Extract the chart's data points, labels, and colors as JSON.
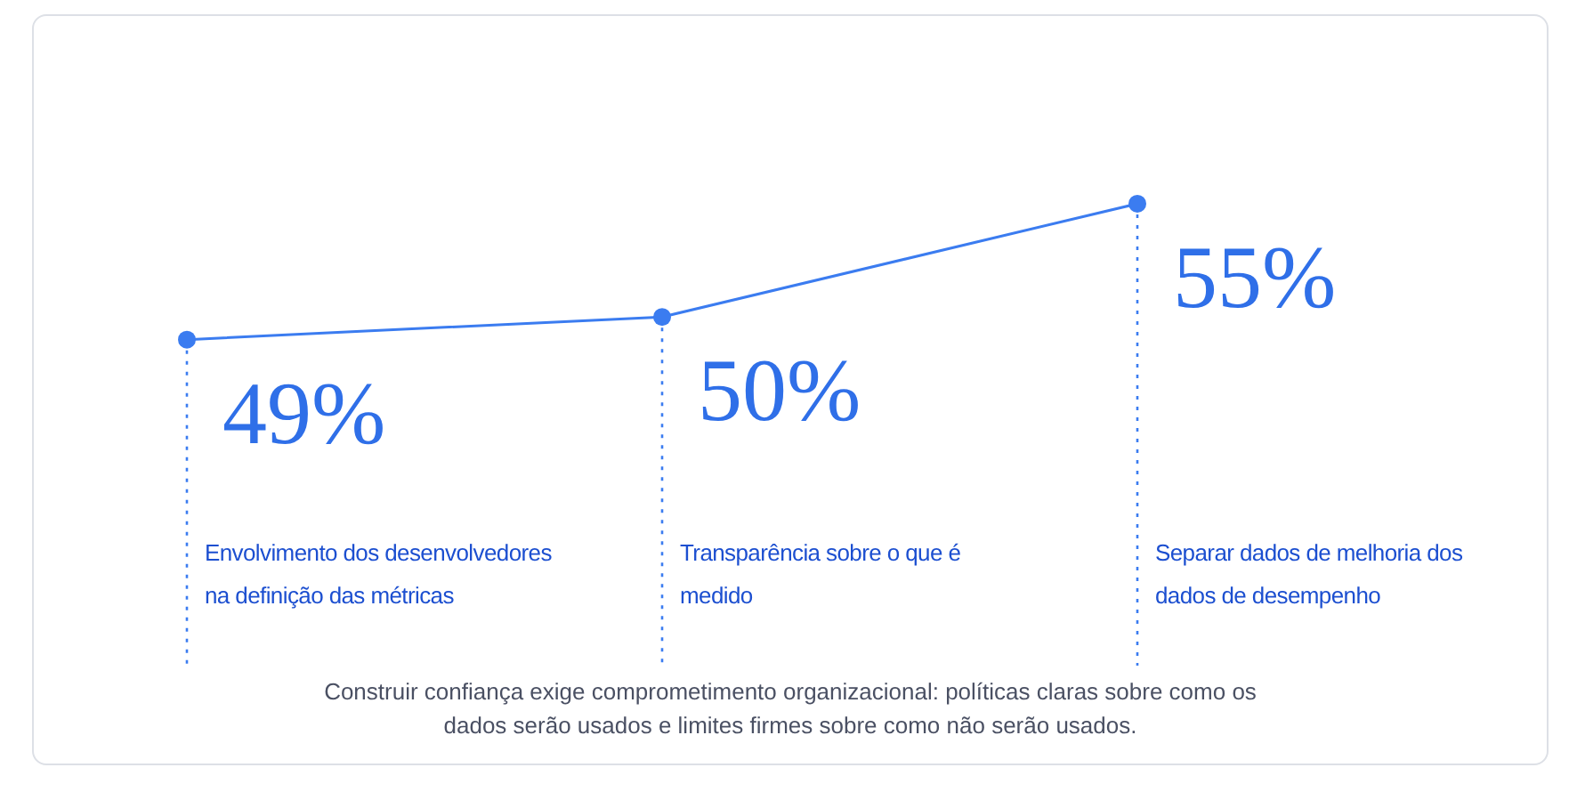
{
  "chart_data": {
    "type": "other",
    "categories": [
      "Envolvimento dos desenvolvedores na definição das métricas",
      "Transparência sobre o que é medido",
      "Separar dados de melhoria dos dados de desempenho"
    ],
    "values": [
      49,
      50,
      55
    ],
    "value_labels": [
      "49%",
      "50%",
      "55%"
    ],
    "color": "#3b7cf0",
    "annotations": [
      "Construir confiança exige comprometimento organizacional: políticas claras sobre como os dados serão usados e limites firmes sobre como não serão usados."
    ]
  }
}
